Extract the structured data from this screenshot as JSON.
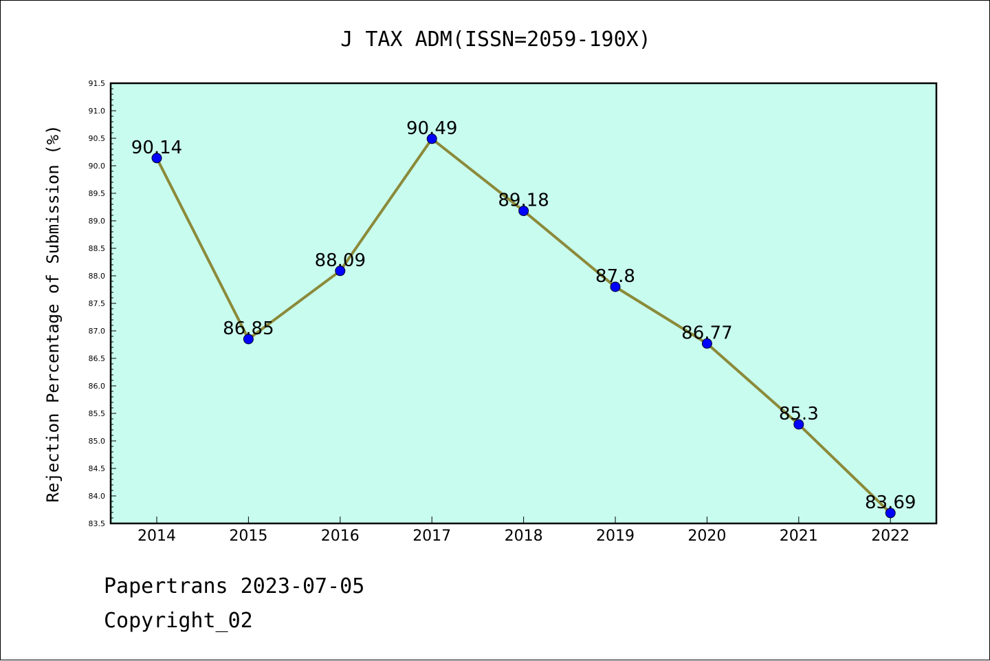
{
  "chart_data": {
    "type": "line",
    "title": "J TAX ADM(ISSN=2059-190X)",
    "xlabel": "",
    "ylabel": "Rejection Percentage of Submission (%)",
    "categories": [
      "2014",
      "2015",
      "2016",
      "2017",
      "2018",
      "2019",
      "2020",
      "2021",
      "2022"
    ],
    "series": [
      {
        "values": [
          90.14,
          86.85,
          88.09,
          90.49,
          89.18,
          87.8,
          86.77,
          85.3,
          83.69
        ],
        "labels": [
          "90.14",
          "86.85",
          "88.09",
          "90.49",
          "89.18",
          "87.8",
          "86.77",
          "85.3",
          "83.69"
        ],
        "line_color": "#8b8a3a",
        "marker_color": "#0000ff"
      }
    ],
    "ylim": [
      83.5,
      91.5
    ],
    "yticks": [
      "83.5",
      "84.0",
      "84.5",
      "85.0",
      "85.5",
      "86.0",
      "86.5",
      "87.0",
      "87.5",
      "88.0",
      "88.5",
      "89.0",
      "89.5",
      "90.0",
      "90.5",
      "91.0",
      "91.5"
    ],
    "grid": false,
    "plot_background": "#c8fcee"
  },
  "footer": {
    "line1": "Papertrans 2023-07-05",
    "line2": "Copyright_02"
  }
}
